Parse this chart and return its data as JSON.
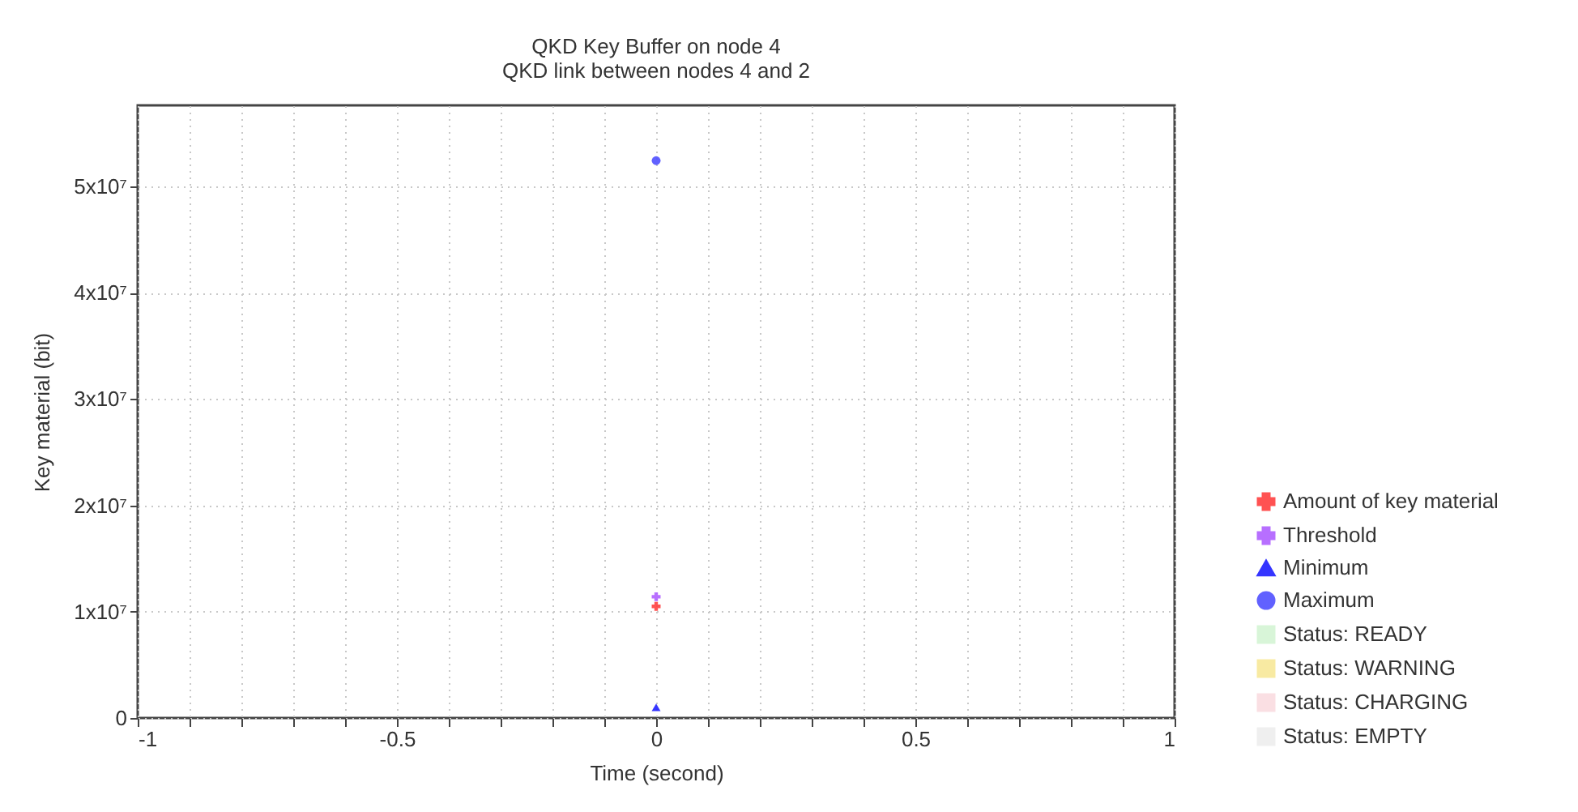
{
  "chart_data": {
    "type": "line",
    "title": "QKD Key Buffer on node 4",
    "subtitle": "QKD link between nodes 4 and 2",
    "xlabel": "Time (second)",
    "ylabel": "Key material (bit)",
    "x": [
      0
    ],
    "series": [
      {
        "name": "Amount of key material",
        "color": "#ff4040",
        "marker": "cross",
        "values": [
          10500000
        ]
      },
      {
        "name": "Threshold",
        "color": "#b060ff",
        "marker": "cross",
        "values": [
          11400000
        ]
      },
      {
        "name": "Minimum",
        "color": "#2020ff",
        "marker": "triangle",
        "values": [
          1000000
        ]
      },
      {
        "name": "Maximum",
        "color": "#5050ff",
        "marker": "circle",
        "values": [
          52400000
        ]
      },
      {
        "name": "Status: READY",
        "type": "area",
        "color": "#d4f5d4",
        "values": [
          null
        ]
      },
      {
        "name": "Status: WARNING",
        "type": "area",
        "color": "#f8e898",
        "values": [
          null
        ]
      },
      {
        "name": "Status: CHARGING",
        "type": "area",
        "color": "#fadce0",
        "values": [
          null
        ]
      },
      {
        "name": "Status: EMPTY",
        "type": "area",
        "color": "#eeeeee",
        "values": [
          null
        ]
      }
    ],
    "xlim": [
      -1,
      1
    ],
    "xticks": [
      -1,
      {
        "value": -0.9,
        "label": null
      },
      {
        "value": -0.8,
        "label": null
      },
      {
        "value": -0.7,
        "label": null
      },
      {
        "value": -0.6,
        "label": null
      },
      -0.5,
      {
        "value": -0.4,
        "label": null
      },
      {
        "value": -0.3,
        "label": null
      },
      {
        "value": -0.2,
        "label": null
      },
      {
        "value": -0.1,
        "label": null
      },
      0,
      {
        "value": 0.1,
        "label": null
      },
      {
        "value": 0.2,
        "label": null
      },
      {
        "value": 0.3,
        "label": null
      },
      {
        "value": 0.4,
        "label": null
      },
      0.5,
      {
        "value": 0.6,
        "label": null
      },
      {
        "value": 0.7,
        "label": null
      },
      {
        "value": 0.8,
        "label": null
      },
      {
        "value": 0.9,
        "label": null
      },
      1
    ],
    "ylim": [
      0,
      57600000
    ],
    "yticks": [
      0,
      {
        "value": 10000000,
        "label": "1x10⁷"
      },
      {
        "value": 20000000,
        "label": "2x10⁷"
      },
      {
        "value": 30000000,
        "label": "3x10⁷"
      },
      {
        "value": 40000000,
        "label": "4x10⁷"
      },
      {
        "value": 50000000,
        "label": "5x10⁷"
      }
    ],
    "grid": true,
    "legend": "right"
  }
}
